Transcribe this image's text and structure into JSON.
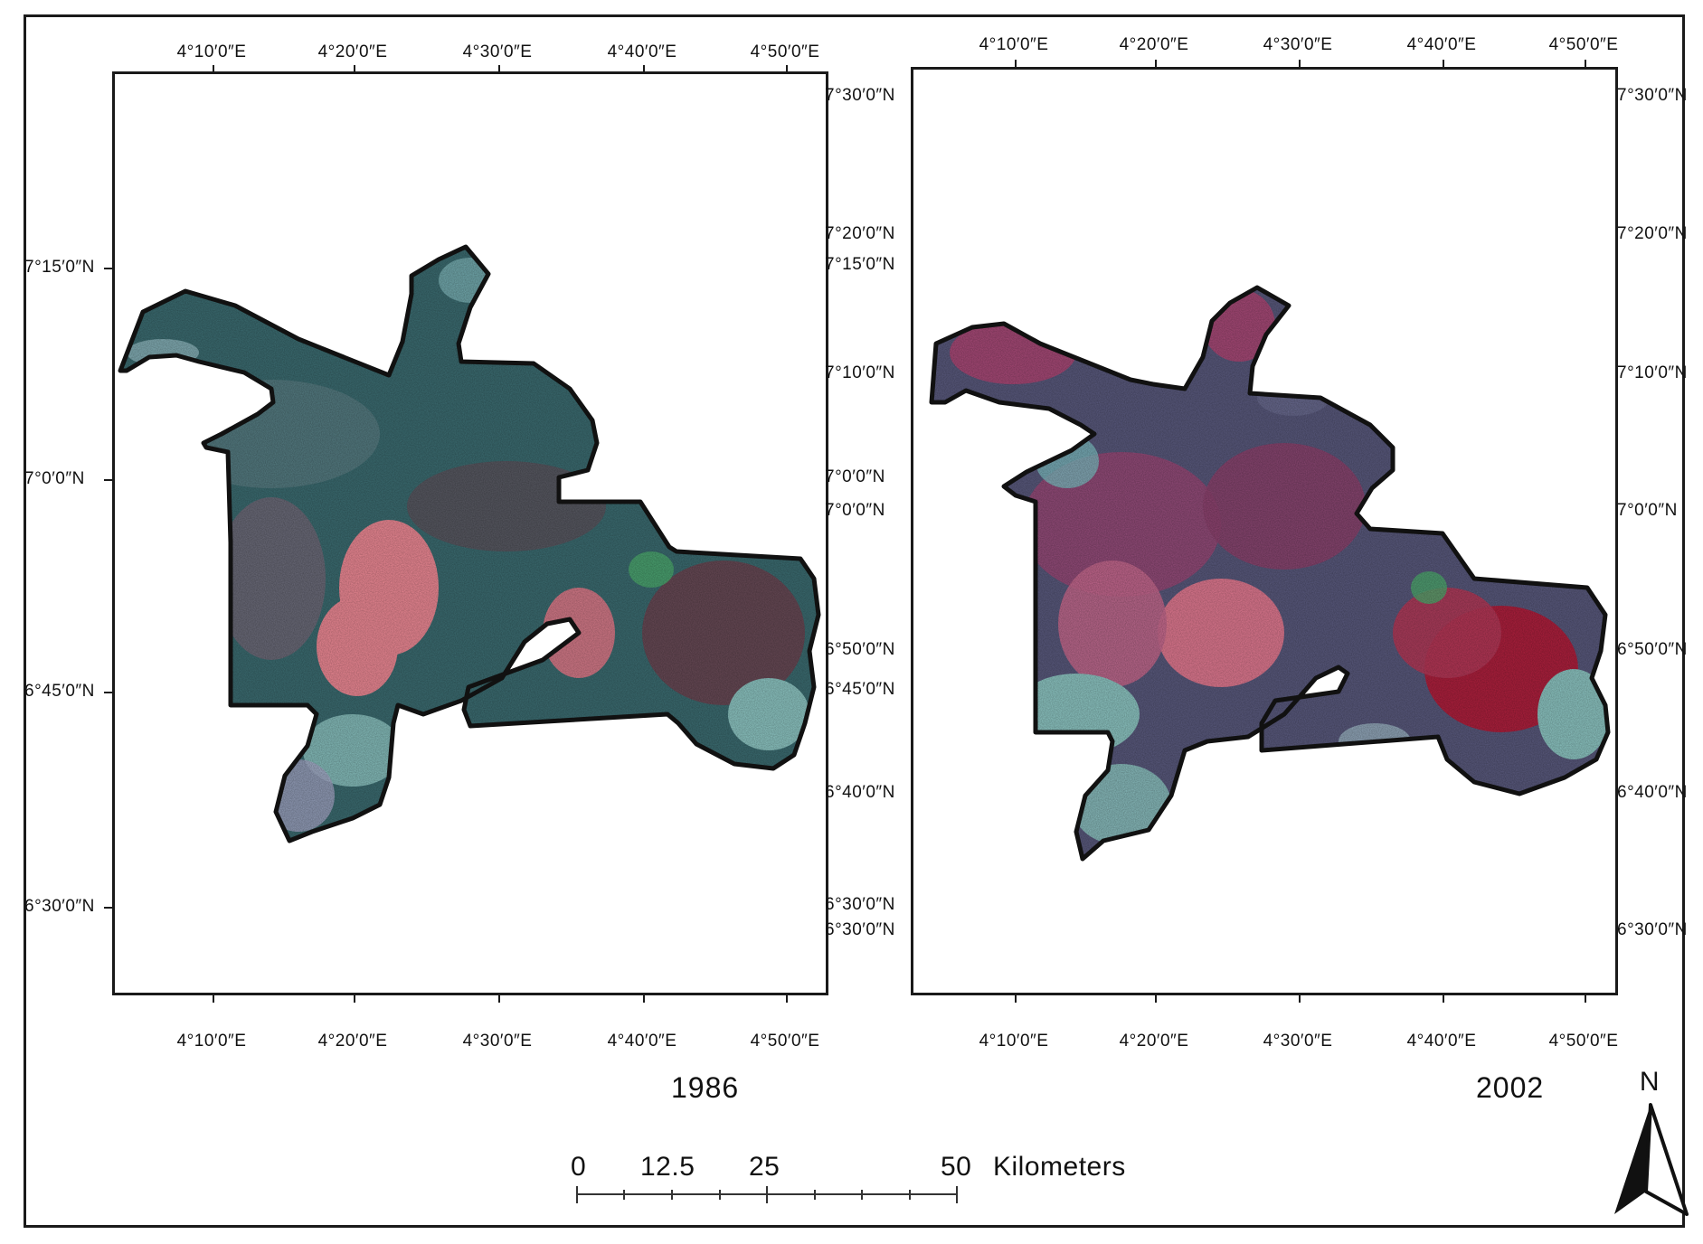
{
  "maps": [
    {
      "year": "1986",
      "top_lon_labels": [
        "4°10′0″E",
        "4°20′0″E",
        "4°30′0″E",
        "4°40′0″E",
        "4°50′0″E"
      ],
      "bottom_lon_labels": [
        "4°10′0″E",
        "4°20′0″E",
        "4°30′0″E",
        "4°40′0″E",
        "4°50′0″E"
      ],
      "left_lat_labels": [
        "7°15′0″N",
        "7°0′0″N",
        "6°45′0″N",
        "6°30′0″N"
      ],
      "right_lat_labels": [
        "7°30′0″N",
        "7°20′0″N",
        "7°15′0″N",
        "7°10′0″N",
        "7°0′0″N",
        "7°0′0″N",
        "6°50′0″N",
        "6°45′0″N",
        "6°40′0″N",
        "6°30′0″N",
        "6°30′0″N"
      ]
    },
    {
      "year": "2002",
      "top_lon_labels": [
        "4°10′0″E",
        "4°20′0″E",
        "4°30′0″E",
        "4°40′0″E",
        "4°50′0″E"
      ],
      "bottom_lon_labels": [
        "4°10′0″E",
        "4°20′0″E",
        "4°30′0″E",
        "4°40′0″E",
        "4°50′0″E"
      ],
      "right_lat_labels": [
        "7°30′0″N",
        "7°20′0″N",
        "7°10′0″N",
        "7°0′0″N",
        "6°50′0″N",
        "6°40′0″N",
        "6°30′0″N"
      ]
    }
  ],
  "scale_bar": {
    "labels": [
      "0",
      "12.5",
      "25",
      "50"
    ],
    "unit": "Kilometers"
  },
  "north_arrow": {
    "label": "N",
    "icon": "north-arrow-icon"
  },
  "colors": {
    "outline": "#111111",
    "base_dark_teal": "#3c6d72",
    "pink_urban": "#ef8a96",
    "cyan_bare": "#8ec7c4",
    "red_vegetation": "#b0203e",
    "green_spots": "#4fb070",
    "magenta_2002": "#a84a78"
  }
}
